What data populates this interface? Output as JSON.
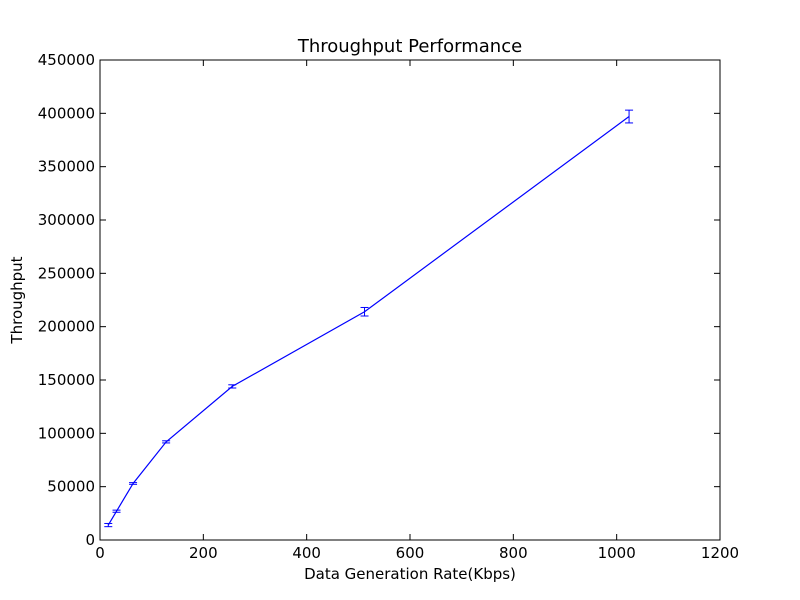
{
  "chart_data": {
    "type": "line",
    "title": "Throughput Performance",
    "xlabel": "Data Generation Rate(Kbps)",
    "ylabel": "Throughput",
    "xlim": [
      0,
      1200
    ],
    "ylim": [
      0,
      450000
    ],
    "x_ticks": [
      "0",
      "200",
      "400",
      "600",
      "800",
      "1000",
      "1200"
    ],
    "y_ticks": [
      "0",
      "50000",
      "100000",
      "150000",
      "200000",
      "250000",
      "300000",
      "350000",
      "400000",
      "450000"
    ],
    "grid": false,
    "legend": "none",
    "series": [
      {
        "color": "#0000ff",
        "x": [
          16,
          32,
          64,
          128,
          256,
          512,
          1024
        ],
        "y": [
          14000,
          27000,
          53000,
          92000,
          144000,
          214000,
          397000
        ],
        "yerr": [
          1500,
          1000,
          800,
          1000,
          1500,
          4000,
          6000
        ]
      }
    ]
  }
}
